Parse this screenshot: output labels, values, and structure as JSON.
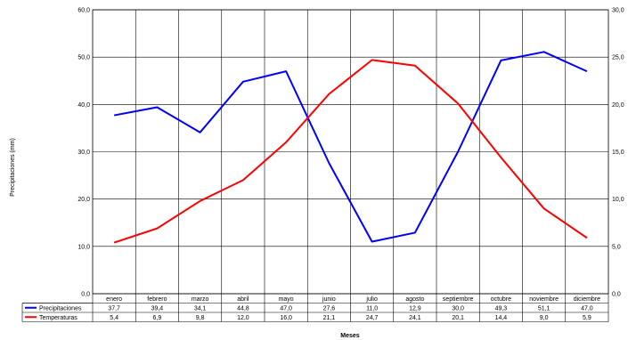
{
  "chart_data": {
    "type": "line",
    "xlabel": "Meses",
    "ylabel": "Precipitaciones (mm)",
    "categories": [
      "enero",
      "febrero",
      "marzo",
      "abril",
      "mayo",
      "junio",
      "julio",
      "agosto",
      "septiembre",
      "octubre",
      "noviembre",
      "diciembre"
    ],
    "ylim_left": [
      0,
      60
    ],
    "ylim_right": [
      0,
      30
    ],
    "yticks_left": [
      "0,0",
      "10,0",
      "20,0",
      "30,0",
      "40,0",
      "50,0",
      "60,0"
    ],
    "yticks_right": [
      "0,0",
      "5,0",
      "10,0",
      "15,0",
      "20,0",
      "25,0",
      "30,0"
    ],
    "grid": true,
    "legend": "data-table-left",
    "series": [
      {
        "name": "Precipitaciones",
        "color": "#0000ff",
        "axis": "left",
        "values": [
          37.7,
          39.4,
          34.1,
          44.8,
          47.0,
          27.6,
          11.0,
          12.9,
          30.0,
          49.3,
          51.1,
          47.0
        ],
        "labels": [
          "37,7",
          "39,4",
          "34,1",
          "44,8",
          "47,0",
          "27,6",
          "11,0",
          "12,9",
          "30,0",
          "49,3",
          "51,1",
          "47,0"
        ]
      },
      {
        "name": "Temperaturas",
        "color": "#ff0000",
        "axis": "right",
        "values": [
          5.4,
          6.9,
          9.8,
          12.0,
          16.0,
          21.1,
          24.7,
          24.1,
          20.1,
          14.4,
          9.0,
          5.9
        ],
        "labels": [
          "5,4",
          "6,9",
          "9,8",
          "12,0",
          "16,0",
          "21,1",
          "24,7",
          "24,1",
          "20,1",
          "14,4",
          "9,0",
          "5,9"
        ]
      }
    ]
  }
}
